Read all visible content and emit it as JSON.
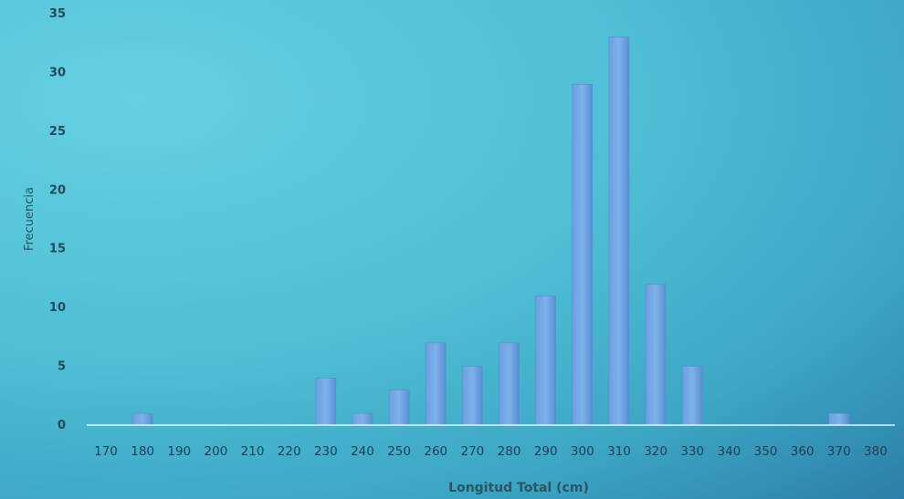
{
  "chart_data": {
    "type": "bar",
    "xlabel": "Longitud Total (cm)",
    "ylabel": "Frecuencia",
    "ylim": [
      0,
      35
    ],
    "yticks": [
      0,
      5,
      10,
      15,
      20,
      25,
      30,
      35
    ],
    "categories": [
      "170",
      "180",
      "190",
      "200",
      "210",
      "220",
      "230",
      "240",
      "250",
      "260",
      "270",
      "280",
      "290",
      "300",
      "310",
      "320",
      "330",
      "340",
      "350",
      "360",
      "370",
      "380"
    ],
    "values": [
      0,
      1,
      0,
      0,
      0,
      0,
      4,
      1,
      3,
      7,
      5,
      7,
      11,
      29,
      33,
      12,
      5,
      0,
      0,
      0,
      1,
      0
    ],
    "grid": false,
    "colors": {
      "bar_top": "#7fb0e8",
      "bar_bottom": "#4f86cf",
      "axis": "#e8f6fa"
    }
  }
}
